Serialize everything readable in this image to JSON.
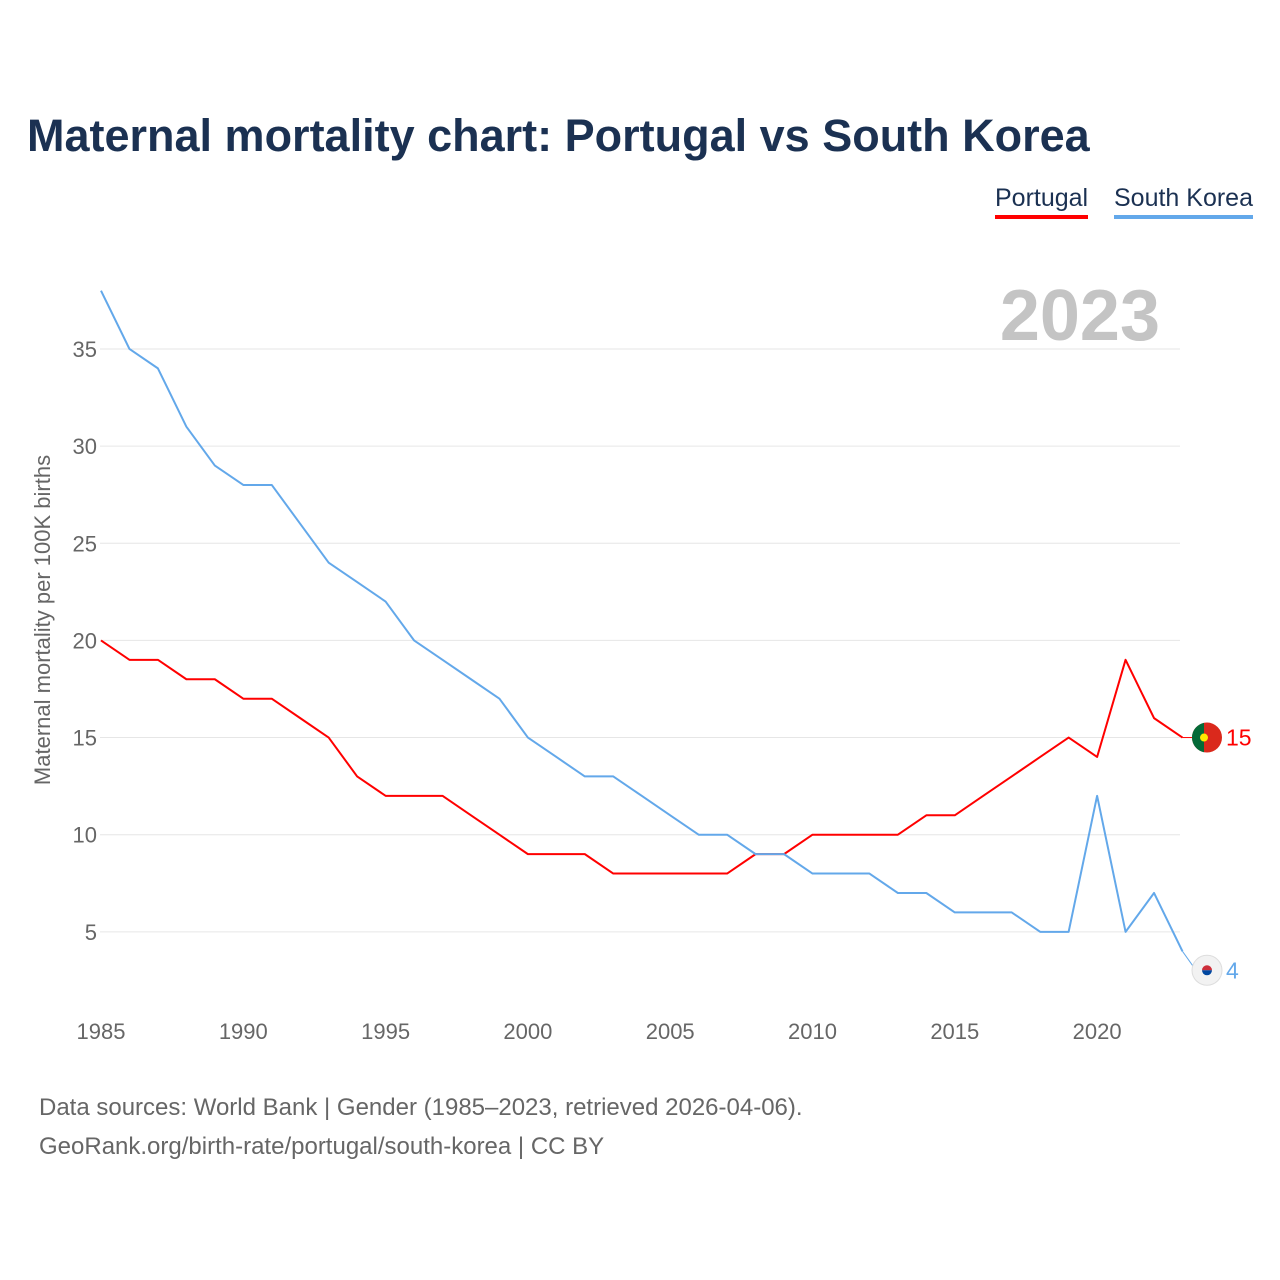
{
  "title": "Maternal mortality chart: Portugal vs South Korea",
  "legend": {
    "portugal": "Portugal",
    "south_korea": "South Korea"
  },
  "year_label": "2023",
  "source_line1": "Data sources: World Bank | Gender (1985–2023, retrieved 2026-04-06).",
  "source_line2": "GeoRank.org/birth-rate/portugal/south-korea | CC BY",
  "chart_data": {
    "type": "line",
    "title": "Maternal mortality chart: Portugal vs South Korea",
    "xlabel": "",
    "ylabel": "Maternal mortality per 100K births",
    "xlim": [
      1985,
      2023
    ],
    "ylim": [
      0,
      38
    ],
    "xticks": [
      1985,
      1990,
      1995,
      2000,
      2005,
      2010,
      2015,
      2020
    ],
    "yticks": [
      5,
      10,
      15,
      20,
      25,
      30,
      35
    ],
    "grid": true,
    "legend_position": "top-right",
    "x": [
      1985,
      1986,
      1987,
      1988,
      1989,
      1990,
      1991,
      1992,
      1993,
      1994,
      1995,
      1996,
      1997,
      1998,
      1999,
      2000,
      2001,
      2002,
      2003,
      2004,
      2005,
      2006,
      2007,
      2008,
      2009,
      2010,
      2011,
      2012,
      2013,
      2014,
      2015,
      2016,
      2017,
      2018,
      2019,
      2020,
      2021,
      2022,
      2023
    ],
    "series": [
      {
        "name": "Portugal",
        "color": "#ff0000",
        "end_label": "15",
        "values": [
          20,
          19,
          19,
          18,
          18,
          17,
          17,
          16,
          15,
          13,
          12,
          12,
          12,
          11,
          10,
          9,
          9,
          9,
          8,
          8,
          8,
          8,
          8,
          9,
          9,
          10,
          10,
          10,
          10,
          11,
          11,
          12,
          13,
          14,
          15,
          14,
          19,
          16,
          15
        ]
      },
      {
        "name": "South Korea",
        "color": "#63a8ea",
        "end_label": "4",
        "values": [
          38,
          35,
          34,
          31,
          29,
          28,
          28,
          26,
          24,
          23,
          22,
          20,
          19,
          18,
          17,
          15,
          14,
          13,
          13,
          12,
          11,
          10,
          10,
          9,
          9,
          8,
          8,
          8,
          7,
          7,
          6,
          6,
          6,
          5,
          5,
          12,
          5,
          7,
          4
        ]
      }
    ]
  }
}
